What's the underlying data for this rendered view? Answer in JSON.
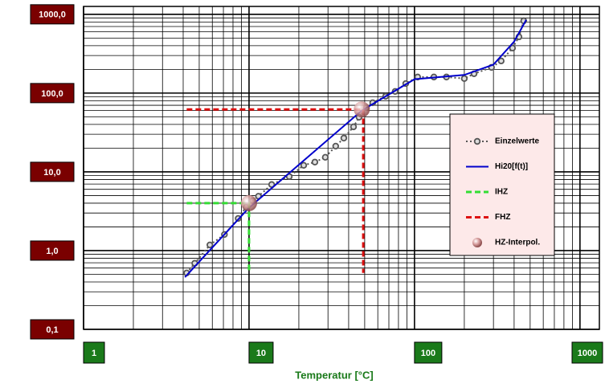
{
  "chart_data": {
    "type": "line",
    "x_label": "Temperatur [°C]",
    "log_x": true,
    "log_y": true,
    "grid": true,
    "minor_grid": true,
    "xlim": [
      1,
      1310
    ],
    "ylim": [
      0.1,
      1260
    ],
    "xticks": [
      1,
      10,
      100,
      1000
    ],
    "yticks": [
      {
        "value": 0.1,
        "label": "0,1"
      },
      {
        "value": 1,
        "label": "1,0"
      },
      {
        "value": 10,
        "label": "10,0"
      },
      {
        "value": 100,
        "label": "100,0"
      },
      {
        "value": 1000,
        "label": "1000,0"
      }
    ],
    "legend": "right",
    "series": [
      {
        "name": "Einzelwerte",
        "color": "#555555",
        "style": "dotted-markers",
        "x": [
          4.2,
          4.7,
          5.8,
          7.1,
          8.6,
          9.6,
          10.5,
          11.4,
          13.7,
          17.5,
          21.4,
          25,
          28.9,
          33.4,
          37.4,
          42.8,
          46.2,
          51.2,
          55.9,
          66.9,
          76.4,
          88.5,
          104.5,
          131,
          156,
          200,
          229,
          292,
          334,
          391,
          428,
          457
        ],
        "values": [
          0.52,
          0.69,
          1.18,
          1.6,
          2.56,
          3.56,
          4.3,
          4.9,
          6.9,
          8.7,
          12.1,
          13.3,
          15.3,
          21.2,
          26.8,
          37.3,
          49.4,
          65.5,
          75.4,
          91,
          105,
          132,
          160,
          160,
          160,
          153,
          176,
          212,
          256,
          373,
          518,
          828
        ]
      },
      {
        "name": "Hi20[f(t)]",
        "color": "#0000cc",
        "style": "solid",
        "x": [
          4.1,
          10,
          48,
          100,
          200,
          300,
          400,
          473
        ],
        "values": [
          0.46,
          3.5,
          60,
          150,
          170,
          230,
          450,
          850
        ]
      },
      {
        "name": "IHZ",
        "color": "#33dd33",
        "style": "dashed",
        "x": [
          4.2,
          10,
          10
        ],
        "values": [
          4,
          4,
          0.52
        ]
      },
      {
        "name": "FHZ",
        "color": "#dd1111",
        "style": "dashed",
        "x": [
          4.2,
          49,
          49
        ],
        "values": [
          62,
          62,
          0.52
        ]
      },
      {
        "name": "HZ-Interpol.",
        "color": "#c88a8a",
        "style": "markers",
        "x": [
          10,
          48
        ],
        "values": [
          4,
          62
        ]
      }
    ]
  }
}
